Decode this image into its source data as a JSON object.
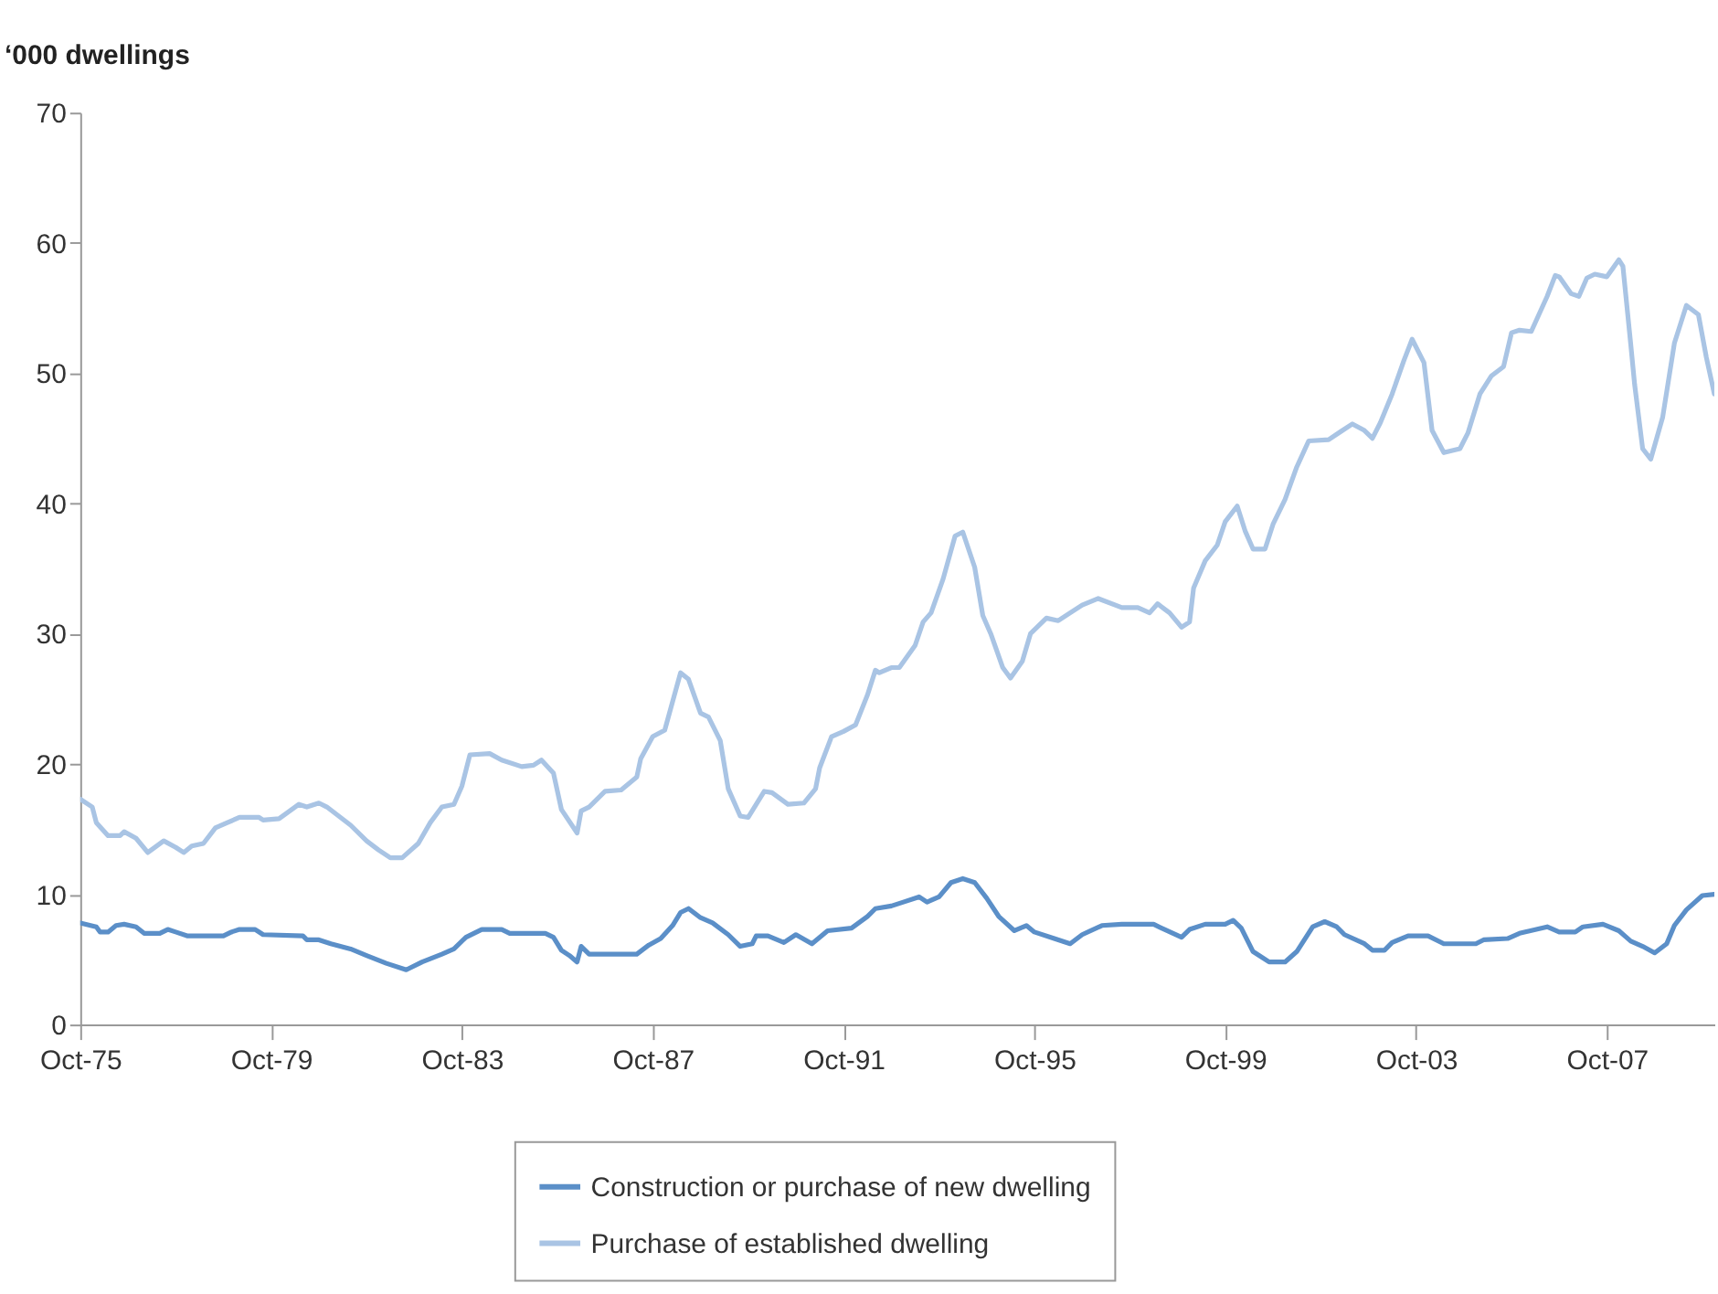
{
  "chart_data": {
    "type": "line",
    "ylabel": "‘000 dwellings",
    "xlim": [
      "1975-10",
      "2010-01"
    ],
    "xticks": [
      {
        "value": "1975-10",
        "label": "Oct-75"
      },
      {
        "value": "1979-10",
        "label": "Oct-79"
      },
      {
        "value": "1983-10",
        "label": "Oct-83"
      },
      {
        "value": "1987-10",
        "label": "Oct-87"
      },
      {
        "value": "1991-10",
        "label": "Oct-91"
      },
      {
        "value": "1995-10",
        "label": "Oct-95"
      },
      {
        "value": "1999-10",
        "label": "Oct-99"
      },
      {
        "value": "2003-10",
        "label": "Oct-03"
      },
      {
        "value": "2007-10",
        "label": "Oct-07"
      }
    ],
    "ylim": [
      0,
      70
    ],
    "yticks": [
      0,
      10,
      20,
      30,
      40,
      50,
      60,
      70
    ],
    "grid": false,
    "legend": "bottom",
    "line_style": "solid",
    "marker": "none",
    "series": [
      {
        "name": "Construction or purchase of new dwelling",
        "color": "#5b8fc8",
        "x": [
          "1975-10",
          "1976-02",
          "1976-03",
          "1976-05",
          "1976-07",
          "1976-09",
          "1976-12",
          "1977-02",
          "1977-06",
          "1977-08",
          "1977-10",
          "1978-01",
          "1978-10",
          "1978-12",
          "1979-02",
          "1979-06",
          "1979-08",
          "1980-06",
          "1980-07",
          "1980-10",
          "1981-01",
          "1981-06",
          "1981-10",
          "1982-03",
          "1982-08",
          "1982-12",
          "1983-05",
          "1983-08",
          "1983-11",
          "1984-03",
          "1984-08",
          "1984-10",
          "1985-07",
          "1985-09",
          "1985-11",
          "1986-01",
          "1986-03",
          "1986-04",
          "1986-06",
          "1987-06",
          "1987-09",
          "1987-12",
          "1988-03",
          "1988-05",
          "1988-07",
          "1988-10",
          "1989-01",
          "1989-05",
          "1989-08",
          "1989-11",
          "1989-12",
          "1990-03",
          "1990-07",
          "1990-10",
          "1991-02",
          "1991-06",
          "1991-12",
          "1992-04",
          "1992-06",
          "1992-10",
          "1993-01",
          "1993-05",
          "1993-07",
          "1993-10",
          "1994-01",
          "1994-04",
          "1994-07",
          "1994-10",
          "1995-01",
          "1995-05",
          "1995-08",
          "1995-10",
          "1996-03",
          "1996-07",
          "1996-10",
          "1997-03",
          "1997-08",
          "1998-04",
          "1998-06",
          "1998-11",
          "1999-01",
          "1999-05",
          "1999-10",
          "1999-12",
          "2000-02",
          "2000-05",
          "2000-09",
          "2001-01",
          "2001-04",
          "2001-08",
          "2001-11",
          "2002-02",
          "2002-04",
          "2002-09",
          "2002-11",
          "2003-02",
          "2003-04",
          "2003-08",
          "2004-01",
          "2004-05",
          "2005-01",
          "2005-03",
          "2005-09",
          "2005-12",
          "2006-07",
          "2006-10",
          "2007-02",
          "2007-04",
          "2007-09",
          "2008-01",
          "2008-04",
          "2008-07",
          "2008-10",
          "2009-01",
          "2009-03",
          "2009-06",
          "2009-10",
          "2010-01"
        ],
        "values": [
          7.8,
          7.5,
          7.1,
          7.1,
          7.6,
          7.7,
          7.5,
          7.0,
          7.0,
          7.3,
          7.1,
          6.8,
          6.8,
          7.1,
          7.3,
          7.3,
          6.9,
          6.8,
          6.5,
          6.5,
          6.2,
          5.8,
          5.3,
          4.7,
          4.2,
          4.8,
          5.4,
          5.8,
          6.7,
          7.3,
          7.3,
          7.0,
          7.0,
          6.7,
          5.7,
          5.3,
          4.8,
          6.0,
          5.4,
          5.4,
          6.1,
          6.6,
          7.6,
          8.6,
          8.9,
          8.2,
          7.8,
          6.9,
          6.0,
          6.2,
          6.8,
          6.8,
          6.3,
          6.9,
          6.2,
          7.2,
          7.4,
          8.3,
          8.9,
          9.1,
          9.4,
          9.8,
          9.4,
          9.8,
          10.9,
          11.2,
          10.9,
          9.7,
          8.3,
          7.2,
          7.6,
          7.1,
          6.6,
          6.2,
          6.9,
          7.6,
          7.7,
          7.7,
          7.4,
          6.7,
          7.3,
          7.7,
          7.7,
          8.0,
          7.4,
          5.6,
          4.8,
          4.8,
          5.6,
          7.5,
          7.9,
          7.5,
          6.9,
          6.2,
          5.7,
          5.7,
          6.3,
          6.8,
          6.8,
          6.2,
          6.2,
          6.5,
          6.6,
          7.0,
          7.5,
          7.1,
          7.1,
          7.5,
          7.7,
          7.2,
          6.4,
          6.0,
          5.5,
          6.2,
          7.6,
          8.8,
          9.9,
          10.0
        ]
      },
      {
        "name": "Purchase of established dwelling",
        "color": "#a9c4e4",
        "x": [
          "1975-10",
          "1976-01",
          "1976-02",
          "1976-05",
          "1976-08",
          "1976-09",
          "1976-12",
          "1977-03",
          "1977-07",
          "1977-10",
          "1977-12",
          "1978-02",
          "1978-05",
          "1978-08",
          "1978-11",
          "1979-02",
          "1979-07",
          "1979-08",
          "1979-12",
          "1980-05",
          "1980-07",
          "1980-10",
          "1980-12",
          "1981-06",
          "1981-10",
          "1982-01",
          "1982-04",
          "1982-07",
          "1982-11",
          "1983-02",
          "1983-05",
          "1983-08",
          "1983-10",
          "1983-12",
          "1984-05",
          "1984-08",
          "1985-01",
          "1985-04",
          "1985-06",
          "1985-09",
          "1985-11",
          "1986-03",
          "1986-04",
          "1986-06",
          "1986-10",
          "1987-02",
          "1987-06",
          "1987-07",
          "1987-10",
          "1988-01",
          "1988-05",
          "1988-07",
          "1988-10",
          "1988-12",
          "1989-03",
          "1989-05",
          "1989-08",
          "1989-10",
          "1990-02",
          "1990-04",
          "1990-08",
          "1990-12",
          "1991-03",
          "1991-04",
          "1991-07",
          "1991-10",
          "1992-01",
          "1992-04",
          "1992-06",
          "1992-07",
          "1992-10",
          "1992-12",
          "1993-04",
          "1993-06",
          "1993-08",
          "1993-11",
          "1994-02",
          "1994-04",
          "1994-07",
          "1994-09",
          "1994-11",
          "1995-02",
          "1995-04",
          "1995-07",
          "1995-09",
          "1996-01",
          "1996-04",
          "1996-07",
          "1996-10",
          "1997-02",
          "1997-08",
          "1997-12",
          "1998-03",
          "1998-05",
          "1998-08",
          "1998-11",
          "1999-01",
          "1999-02",
          "1999-05",
          "1999-08",
          "1999-10",
          "2000-01",
          "2000-03",
          "2000-05",
          "2000-08",
          "2000-10",
          "2001-01",
          "2001-04",
          "2001-07",
          "2001-12",
          "2002-03",
          "2002-06",
          "2002-09",
          "2002-11",
          "2003-01",
          "2003-04",
          "2003-07",
          "2003-09",
          "2003-12",
          "2004-02",
          "2004-05",
          "2004-09",
          "2004-11",
          "2005-02",
          "2005-05",
          "2005-08",
          "2005-10",
          "2005-12",
          "2006-03",
          "2006-07",
          "2006-09",
          "2006-10",
          "2007-01",
          "2007-03",
          "2007-05",
          "2007-07",
          "2007-10",
          "2008-01",
          "2008-02",
          "2008-04",
          "2008-05",
          "2008-07",
          "2008-09",
          "2008-12",
          "2009-03",
          "2009-06",
          "2009-09",
          "2009-11",
          "2010-01"
        ],
        "values": [
          17.3,
          16.7,
          15.5,
          14.5,
          14.5,
          14.8,
          14.3,
          13.2,
          14.1,
          13.6,
          13.2,
          13.7,
          13.9,
          15.1,
          15.5,
          15.9,
          15.9,
          15.7,
          15.8,
          16.9,
          16.7,
          17.0,
          16.7,
          15.3,
          14.1,
          13.4,
          12.8,
          12.8,
          13.9,
          15.5,
          16.7,
          16.9,
          18.3,
          20.7,
          20.8,
          20.3,
          19.8,
          19.9,
          20.3,
          19.3,
          16.5,
          14.7,
          16.4,
          16.7,
          17.9,
          18.0,
          19.0,
          20.4,
          22.1,
          22.6,
          27.0,
          26.5,
          23.9,
          23.6,
          21.8,
          18.1,
          16.0,
          15.9,
          17.9,
          17.8,
          16.9,
          17.0,
          18.1,
          19.7,
          22.1,
          22.5,
          23.0,
          25.3,
          27.2,
          27.0,
          27.4,
          27.4,
          29.1,
          30.9,
          31.6,
          34.2,
          37.5,
          37.8,
          35.1,
          31.4,
          30.0,
          27.4,
          26.6,
          27.9,
          30.0,
          31.2,
          31.0,
          31.6,
          32.2,
          32.7,
          32.0,
          32.0,
          31.6,
          32.3,
          31.6,
          30.5,
          30.9,
          33.5,
          35.6,
          36.8,
          38.6,
          39.8,
          37.9,
          36.5,
          36.5,
          38.4,
          40.3,
          42.8,
          44.8,
          44.9,
          45.5,
          46.1,
          45.6,
          45.0,
          46.2,
          48.4,
          51.0,
          52.6,
          50.8,
          45.6,
          43.9,
          44.2,
          45.4,
          48.4,
          49.8,
          50.5,
          53.1,
          53.3,
          53.2,
          55.9,
          57.5,
          57.4,
          56.1,
          55.9,
          57.3,
          57.6,
          57.4,
          58.7,
          58.2,
          52.2,
          49.1,
          44.2,
          43.4,
          46.6,
          52.3,
          55.2,
          54.5,
          51.2,
          48.4
        ]
      }
    ]
  }
}
